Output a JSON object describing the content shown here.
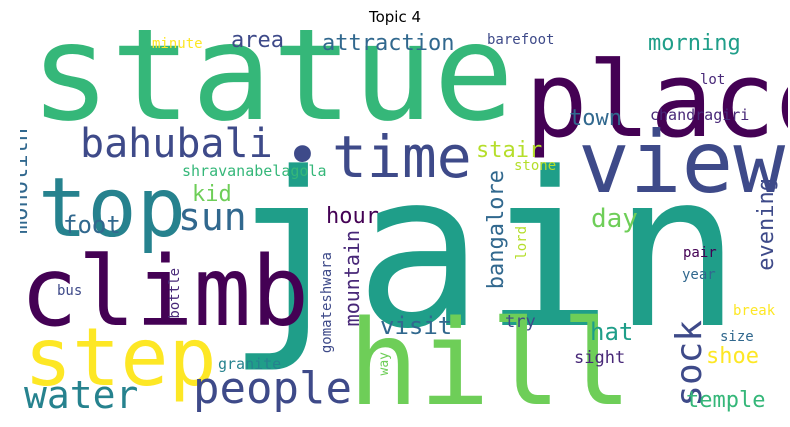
{
  "title": "Topic 4",
  "words": {
    "jain": "jain",
    "statue": "statue",
    "hill": "hill",
    "place": "place",
    "view": "view",
    "climb": "climb",
    "top": "top",
    "step": "step",
    "time": "time",
    "bahubali": "bahubali",
    "people": "people",
    "water": "water",
    "sun": "sun",
    "sock": "sock",
    "morning": "morning",
    "attraction": "attraction",
    "area": "area",
    "town": "town",
    "chandragiri": "chandragiri",
    "stair": "stair",
    "monolith": "monolith",
    "kid": "kid",
    "shravanabelagola": "shravanabelagola",
    "foot": "foot",
    "hour": "hour",
    "day": "day",
    "bangalore": "bangalore",
    "evening": "evening",
    "mountain": "mountain",
    "gomateshwara": "gomateshwara",
    "visit": "visit",
    "hat": "hat",
    "shoe": "shoe",
    "temple": "temple",
    "try": "try",
    "sight": "sight",
    "granite": "granite",
    "way": "way",
    "bottle": "bottle",
    "bus": "bus",
    "lord": "lord",
    "stone": "stone",
    "pair": "pair",
    "year": "year",
    "break": "break",
    "size": "size",
    "minute": "minute",
    "barefoot": "barefoot",
    "lot": "lot",
    "dot": "•"
  },
  "colors": {
    "jain": "#1f9e89",
    "statue": "#35b779",
    "hill": "#6ece58",
    "place": "#440154",
    "view": "#3e4a89",
    "climb": "#440154",
    "top": "#26828e",
    "step": "#fde725",
    "time": "#3e4a89",
    "bahubali": "#3e4a89",
    "people": "#3e4a89",
    "water": "#26828e",
    "sun": "#31688e",
    "sock": "#3e4a89",
    "morning": "#1f9e89",
    "attraction": "#31688e",
    "area": "#3e4a89",
    "town": "#31688e",
    "chandragiri": "#482878",
    "stair": "#b5de2b",
    "monolith": "#31688e",
    "kid": "#6ece58",
    "shravanabelagola": "#35b779",
    "foot": "#31688e",
    "hour": "#440154",
    "day": "#6ece58",
    "bangalore": "#31688e",
    "evening": "#3e4a89",
    "mountain": "#482878",
    "gomateshwara": "#3e4a89",
    "visit": "#31688e",
    "hat": "#1f9e89",
    "shoe": "#fde725",
    "temple": "#35b779",
    "try": "#3e4a89",
    "sight": "#482878",
    "granite": "#26828e",
    "way": "#6ece58",
    "bottle": "#482878",
    "bus": "#3e4a89",
    "lord": "#b5de2b",
    "stone": "#b5de2b",
    "pair": "#440154",
    "year": "#31688e",
    "break": "#fde725",
    "size": "#31688e",
    "minute": "#fde725",
    "barefoot": "#3e4a89",
    "lot": "#482878",
    "dot": "#3e4a89"
  }
}
